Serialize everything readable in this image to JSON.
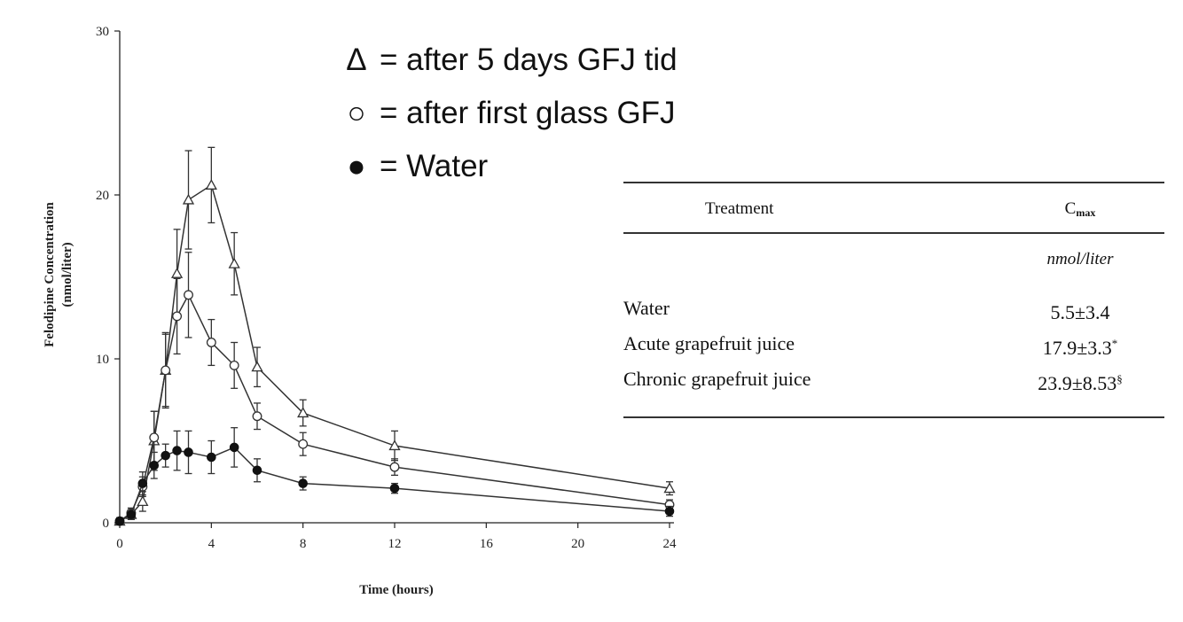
{
  "chart_data": {
    "type": "line",
    "xlabel": "Time (hours)",
    "ylabel": "Felodipine Concentration (nmol/liter)",
    "ylabel_lines": [
      "Felodipine Concentration",
      "(nmol/liter)"
    ],
    "xlim": [
      0,
      24
    ],
    "ylim": [
      0,
      30
    ],
    "x_ticks": [
      0,
      4,
      8,
      12,
      16,
      20,
      24
    ],
    "y_ticks": [
      0,
      10,
      20,
      30
    ],
    "grid": false,
    "series": [
      {
        "name": "after 5 days GFJ tid",
        "marker": "open-triangle",
        "points": [
          {
            "x": 0,
            "y": 0.1,
            "err": 0.2
          },
          {
            "x": 0.5,
            "y": 0.5,
            "err": 0.3
          },
          {
            "x": 1,
            "y": 1.3,
            "err": 0.6
          },
          {
            "x": 1.5,
            "y": 5.0,
            "err": 1.8
          },
          {
            "x": 2,
            "y": 9.3,
            "err": 2.3
          },
          {
            "x": 2.5,
            "y": 15.2,
            "err": 2.7
          },
          {
            "x": 3,
            "y": 19.7,
            "err": 3.0
          },
          {
            "x": 4,
            "y": 20.6,
            "err": 2.3
          },
          {
            "x": 5,
            "y": 15.8,
            "err": 1.9
          },
          {
            "x": 6,
            "y": 9.5,
            "err": 1.2
          },
          {
            "x": 8,
            "y": 6.7,
            "err": 0.8
          },
          {
            "x": 12,
            "y": 4.7,
            "err": 0.9
          },
          {
            "x": 24,
            "y": 2.1,
            "err": 0.4
          }
        ]
      },
      {
        "name": "after first glass GFJ",
        "marker": "open-circle",
        "points": [
          {
            "x": 0,
            "y": 0.1,
            "err": 0.2
          },
          {
            "x": 0.5,
            "y": 0.6,
            "err": 0.3
          },
          {
            "x": 1,
            "y": 2.2,
            "err": 0.6
          },
          {
            "x": 1.5,
            "y": 5.2,
            "err": 1.6
          },
          {
            "x": 2,
            "y": 9.3,
            "err": 2.2
          },
          {
            "x": 2.5,
            "y": 12.6,
            "err": 2.3
          },
          {
            "x": 3,
            "y": 13.9,
            "err": 2.6
          },
          {
            "x": 4,
            "y": 11.0,
            "err": 1.4
          },
          {
            "x": 5,
            "y": 9.6,
            "err": 1.4
          },
          {
            "x": 6,
            "y": 6.5,
            "err": 0.8
          },
          {
            "x": 8,
            "y": 4.8,
            "err": 0.7
          },
          {
            "x": 12,
            "y": 3.4,
            "err": 0.5
          },
          {
            "x": 24,
            "y": 1.1,
            "err": 0.3
          }
        ]
      },
      {
        "name": "Water",
        "marker": "filled-circle",
        "points": [
          {
            "x": 0,
            "y": 0.1,
            "err": 0.2
          },
          {
            "x": 0.5,
            "y": 0.5,
            "err": 0.3
          },
          {
            "x": 1,
            "y": 2.4,
            "err": 0.7
          },
          {
            "x": 1.5,
            "y": 3.5,
            "err": 0.8
          },
          {
            "x": 2,
            "y": 4.1,
            "err": 0.7
          },
          {
            "x": 2.5,
            "y": 4.4,
            "err": 1.2
          },
          {
            "x": 3,
            "y": 4.3,
            "err": 1.3
          },
          {
            "x": 4,
            "y": 4.0,
            "err": 1.0
          },
          {
            "x": 5,
            "y": 4.6,
            "err": 1.2
          },
          {
            "x": 6,
            "y": 3.2,
            "err": 0.7
          },
          {
            "x": 8,
            "y": 2.4,
            "err": 0.4
          },
          {
            "x": 12,
            "y": 2.1,
            "err": 0.3
          },
          {
            "x": 24,
            "y": 0.7,
            "err": 0.3
          }
        ]
      }
    ]
  },
  "legend": [
    {
      "symbol": "Δ",
      "text": "= after 5 days GFJ tid"
    },
    {
      "symbol": "○",
      "text": "= after first glass GFJ"
    },
    {
      "symbol": "●",
      "text": "= Water"
    }
  ],
  "table": {
    "header_treatment": "Treatment",
    "header_cmax_main": "C",
    "header_cmax_sub": "max",
    "units": "nmol/liter",
    "rows": [
      {
        "treatment": "Water",
        "value": "5.5±3.4",
        "mark": ""
      },
      {
        "treatment": "Acute grapefruit juice",
        "value": "17.9±3.3",
        "mark": "*"
      },
      {
        "treatment": "Chronic grapefruit juice",
        "value": "23.9±8.53",
        "mark": "§"
      }
    ]
  }
}
